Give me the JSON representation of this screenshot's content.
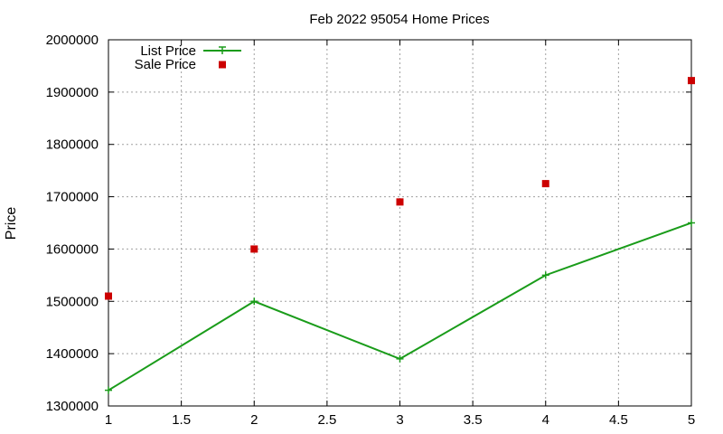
{
  "chart_data": {
    "type": "line",
    "title": "Feb 2022 95054 Home Prices",
    "ylabel": "Price",
    "xlabel": "",
    "xlim": [
      1,
      5
    ],
    "ylim": [
      1300000,
      2000000
    ],
    "xticks": [
      "1",
      "1.5",
      "2",
      "2.5",
      "3",
      "3.5",
      "4",
      "4.5",
      "5"
    ],
    "yticks": [
      "1300000",
      "1400000",
      "1500000",
      "1600000",
      "1700000",
      "1800000",
      "1900000",
      "2000000"
    ],
    "grid": true,
    "legend_position": "top-left",
    "series": [
      {
        "name": "List Price",
        "style": "line-with-plus-markers",
        "color": "#1a9c1a",
        "x": [
          1,
          2,
          3,
          4,
          5
        ],
        "y": [
          1330000,
          1500000,
          1390000,
          1550000,
          1650000
        ]
      },
      {
        "name": "Sale Price",
        "style": "square-markers",
        "color": "#cc0000",
        "x": [
          1,
          2,
          3,
          4,
          5
        ],
        "y": [
          1510000,
          1600000,
          1690000,
          1725000,
          1922000
        ]
      }
    ]
  }
}
